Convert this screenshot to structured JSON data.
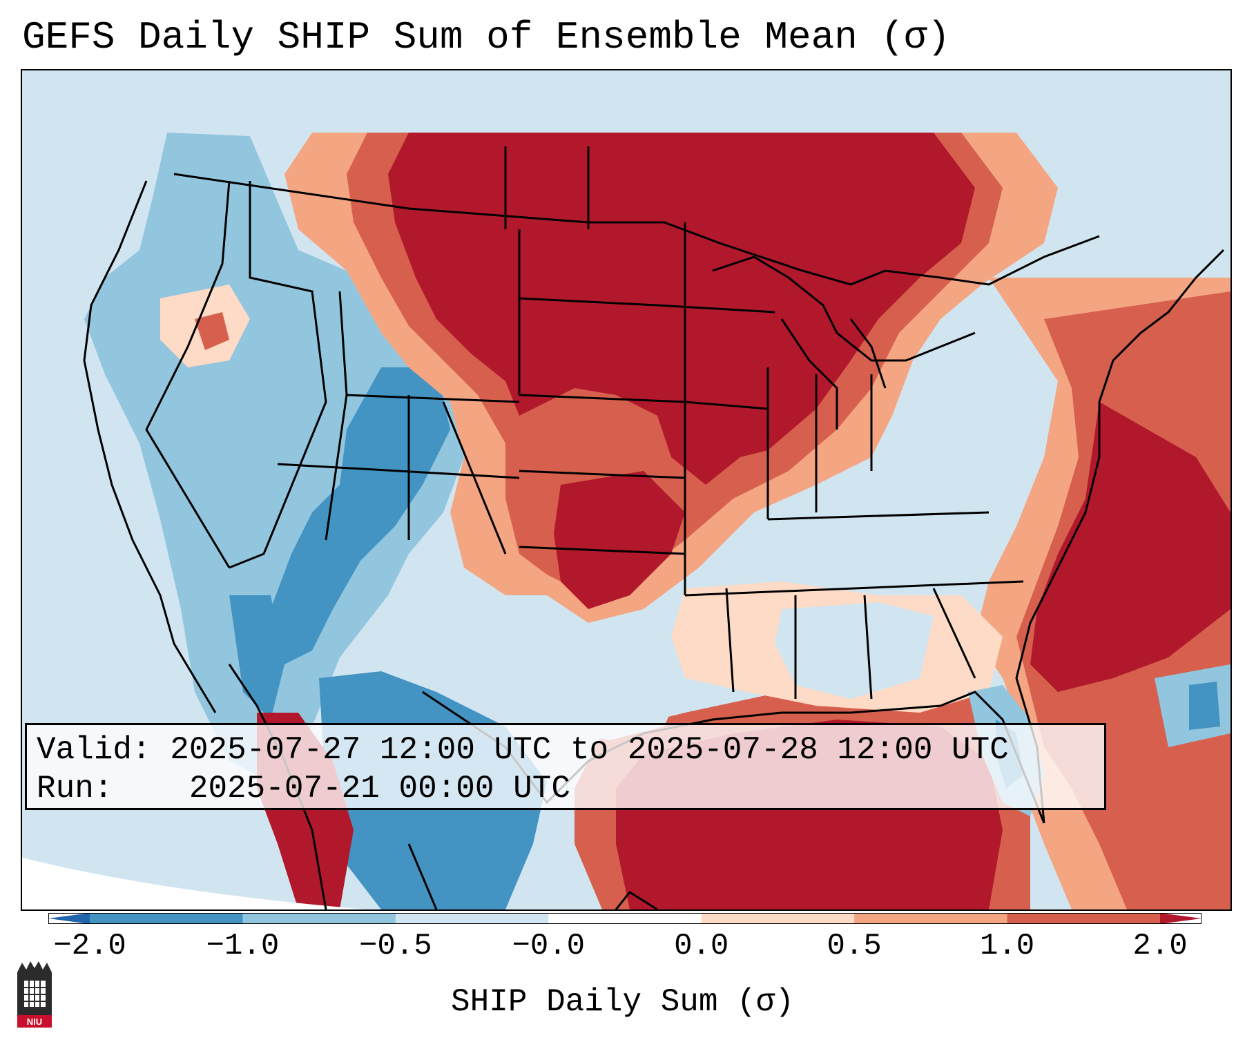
{
  "title": "GEFS Daily SHIP Sum of Ensemble Mean (σ)",
  "info": {
    "valid_label": "Valid:",
    "valid_value": "2025-07-27 12:00 UTC to 2025-07-28 12:00 UTC",
    "run_label": "Run:",
    "run_value": "2025-07-21 00:00 UTC"
  },
  "colorbar": {
    "label": "SHIP Daily Sum (σ)",
    "tick_labels": [
      "−2.0",
      "−1.0",
      "−0.5",
      "−0.0",
      "0.0",
      "0.5",
      "1.0",
      "2.0"
    ],
    "colors": [
      "#2166ac",
      "#4393c3",
      "#92c5de",
      "#d1e5f0",
      "#ffffff",
      "#fddbc7",
      "#f4a582",
      "#d6604d",
      "#b2182b"
    ],
    "extend": "both"
  },
  "map": {
    "region": "Contiguous United States",
    "field_colors": {
      "strong_negative": "#4393c3",
      "moderate_negative": "#92c5de",
      "weak_negative": "#d1e5f0",
      "weak_positive": "#fddbc7",
      "moderate_positive": "#f4a582",
      "strong_positive": "#d6604d",
      "very_strong_positive": "#b2182b"
    }
  },
  "logo": {
    "text": "NIU"
  }
}
